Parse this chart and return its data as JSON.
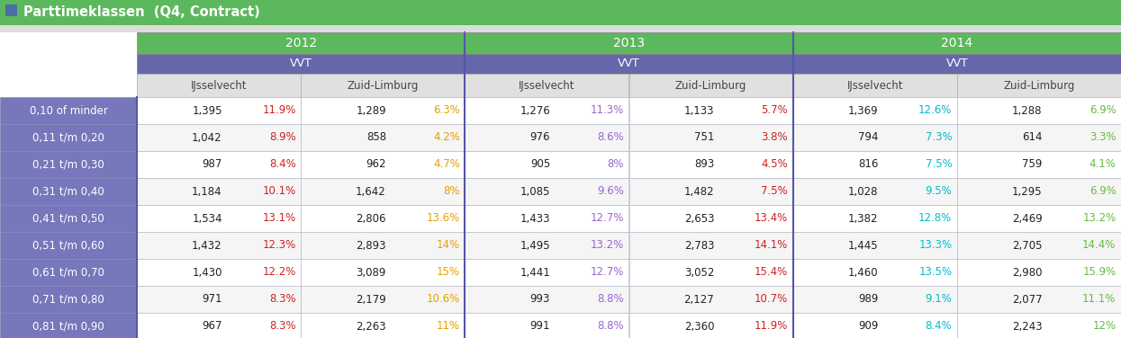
{
  "title": "Parttimeklassen  (Q4, Contract)",
  "title_bg": "#5cb85c",
  "title_icon_color": "#4a6fa5",
  "header_year_bg": "#5cb85c",
  "header_vvt_bg": "#6666aa",
  "header_region_bg": "#e0e0e0",
  "header_region_text": "#444444",
  "row_label_bg": "#7777bb",
  "row_label_border": "#5555aa",
  "row_bg_even": "#ffffff",
  "row_bg_odd": "#f5f5f5",
  "cell_border": "#aaaacc",
  "year_sep_color": "#5555aa",
  "years": [
    "2012",
    "2013",
    "2014"
  ],
  "subheaders": [
    "VVT",
    "VVT",
    "VVT"
  ],
  "regions": [
    "IJsselvecht",
    "Zuid-Limburg",
    "IJsselvecht",
    "Zuid-Limburg",
    "IJsselvecht",
    "Zuid-Limburg"
  ],
  "row_labels": [
    "0,10 of minder",
    "0,11 t/m 0,20",
    "0,21 t/m 0,30",
    "0,31 t/m 0,40",
    "0,41 t/m 0,50",
    "0,51 t/m 0,60",
    "0,61 t/m 0,70",
    "0,71 t/m 0,80",
    "0,81 t/m 0,90"
  ],
  "data": [
    [
      "1,395",
      "11.9%",
      "1,289",
      "6.3%",
      "1,276",
      "11.3%",
      "1,133",
      "5.7%",
      "1,369",
      "12.6%",
      "1,288",
      "6.9%"
    ],
    [
      "1,042",
      "8.9%",
      "858",
      "4.2%",
      "976",
      "8.6%",
      "751",
      "3.8%",
      "794",
      "7.3%",
      "614",
      "3.3%"
    ],
    [
      "987",
      "8.4%",
      "962",
      "4.7%",
      "905",
      "8%",
      "893",
      "4.5%",
      "816",
      "7.5%",
      "759",
      "4.1%"
    ],
    [
      "1,184",
      "10.1%",
      "1,642",
      "8%",
      "1,085",
      "9.6%",
      "1,482",
      "7.5%",
      "1,028",
      "9.5%",
      "1,295",
      "6.9%"
    ],
    [
      "1,534",
      "13.1%",
      "2,806",
      "13.6%",
      "1,433",
      "12.7%",
      "2,653",
      "13.4%",
      "1,382",
      "12.8%",
      "2,469",
      "13.2%"
    ],
    [
      "1,432",
      "12.3%",
      "2,893",
      "14%",
      "1,495",
      "13.2%",
      "2,783",
      "14.1%",
      "1,445",
      "13.3%",
      "2,705",
      "14.4%"
    ],
    [
      "1,430",
      "12.2%",
      "3,089",
      "15%",
      "1,441",
      "12.7%",
      "3,052",
      "15.4%",
      "1,460",
      "13.5%",
      "2,980",
      "15.9%"
    ],
    [
      "971",
      "8.3%",
      "2,179",
      "10.6%",
      "993",
      "8.8%",
      "2,127",
      "10.7%",
      "989",
      "9.1%",
      "2,077",
      "11.1%"
    ],
    [
      "967",
      "8.3%",
      "2,263",
      "11%",
      "991",
      "8.8%",
      "2,360",
      "11.9%",
      "909",
      "8.4%",
      "2,243",
      "12%"
    ]
  ],
  "pct_colors": [
    "#cc2222",
    "#e6a000",
    "#9966cc",
    "#cc2222",
    "#00bbcc",
    "#66bb44"
  ]
}
